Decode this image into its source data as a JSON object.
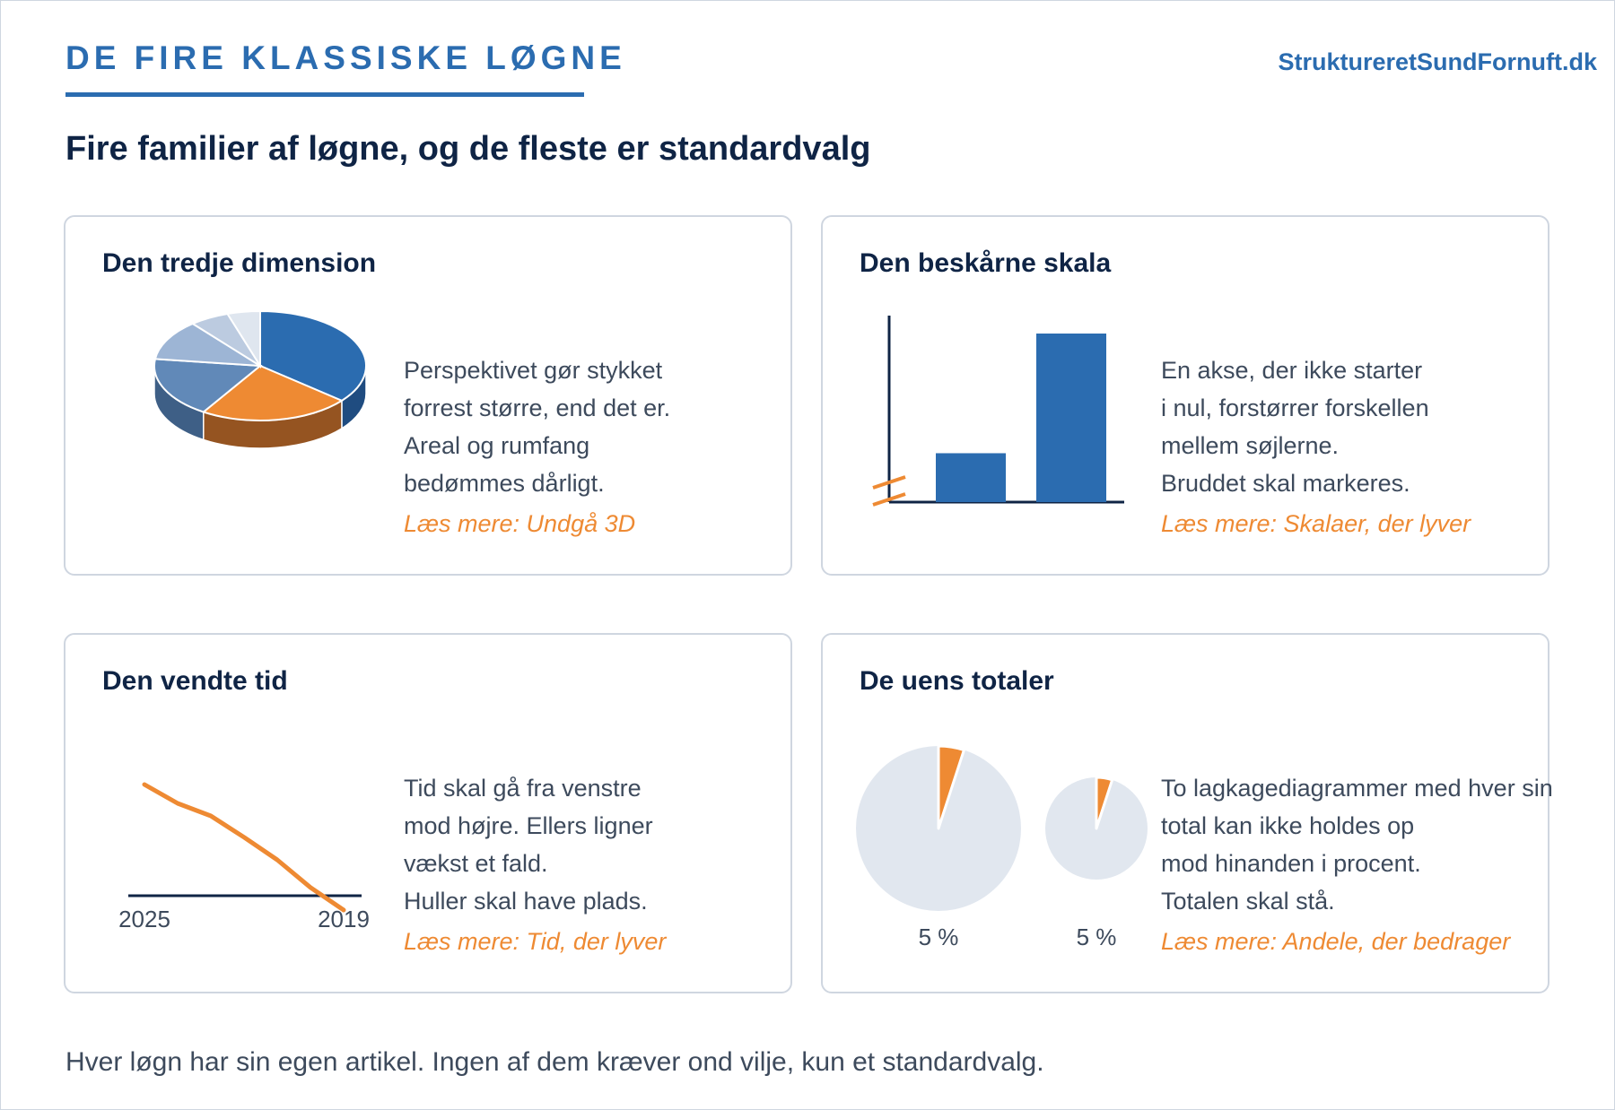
{
  "header": {
    "brand_title": "DE FIRE KLASSISKE LØGNE",
    "site_link": "StruktureretSundFornuft.dk",
    "headline": "Fire familier af løgne, og de fleste er standardvalg"
  },
  "colors": {
    "accent_blue": "#2b6cb0",
    "accent_orange": "#ee8a33",
    "navy": "#0f2445",
    "pie_grey": "#e1e7ef"
  },
  "cards": [
    {
      "title": "Den tredje dimension",
      "lines": [
        "Perspektivet gør stykket",
        "forrest større, end det er.",
        "Areal og rumfang",
        "bedømmes dårligt."
      ],
      "link": "Læs mere: Undgå 3D"
    },
    {
      "title": "Den beskårne skala",
      "lines": [
        "En akse, der ikke starter",
        "i nul, forstørrer forskellen",
        "mellem søjlerne.",
        "Bruddet skal markeres."
      ],
      "link": "Læs mere: Skalaer, der lyver"
    },
    {
      "title": "Den vendte tid",
      "lines": [
        "Tid skal gå fra venstre",
        "mod højre. Ellers ligner",
        "vækst et fald.",
        "Huller skal have plads."
      ],
      "link": "Læs mere: Tid, der lyver"
    },
    {
      "title": "De uens totaler",
      "lines": [
        "To lagkagediagrammer med hver sin",
        "total kan ikke holdes op",
        "mod hinanden i procent.",
        "Totalen skal stå."
      ],
      "link": "Læs mere: Andele, der bedrager"
    }
  ],
  "illustrations": {
    "pie3d_shares": [
      0.36,
      0.23,
      0.18,
      0.12,
      0.06,
      0.05
    ],
    "pie3d_colors": [
      "#2b6cb0",
      "#ee8a33",
      "#6189b8",
      "#9db5d5",
      "#bccbe0",
      "#dfe6ef"
    ],
    "pie3d_side_colors": [
      "#1f4c80",
      "#955421",
      "#3e5f86",
      "#6f87a6",
      "#8b9bb1",
      "#aab4c2"
    ],
    "bars_relative": [
      0.29,
      1.0
    ],
    "line_relative": [
      0.0,
      0.15,
      0.25,
      0.42,
      0.6,
      0.82,
      1.0
    ],
    "line_labels": [
      "2025",
      "2019"
    ],
    "donut_labels": [
      "5 %",
      "5 %"
    ],
    "donut_shares": [
      0.05,
      0.05
    ]
  },
  "footer": {
    "text": "Hver løgn har sin egen artikel. Ingen af dem kræver ond vilje, kun et standardvalg."
  }
}
